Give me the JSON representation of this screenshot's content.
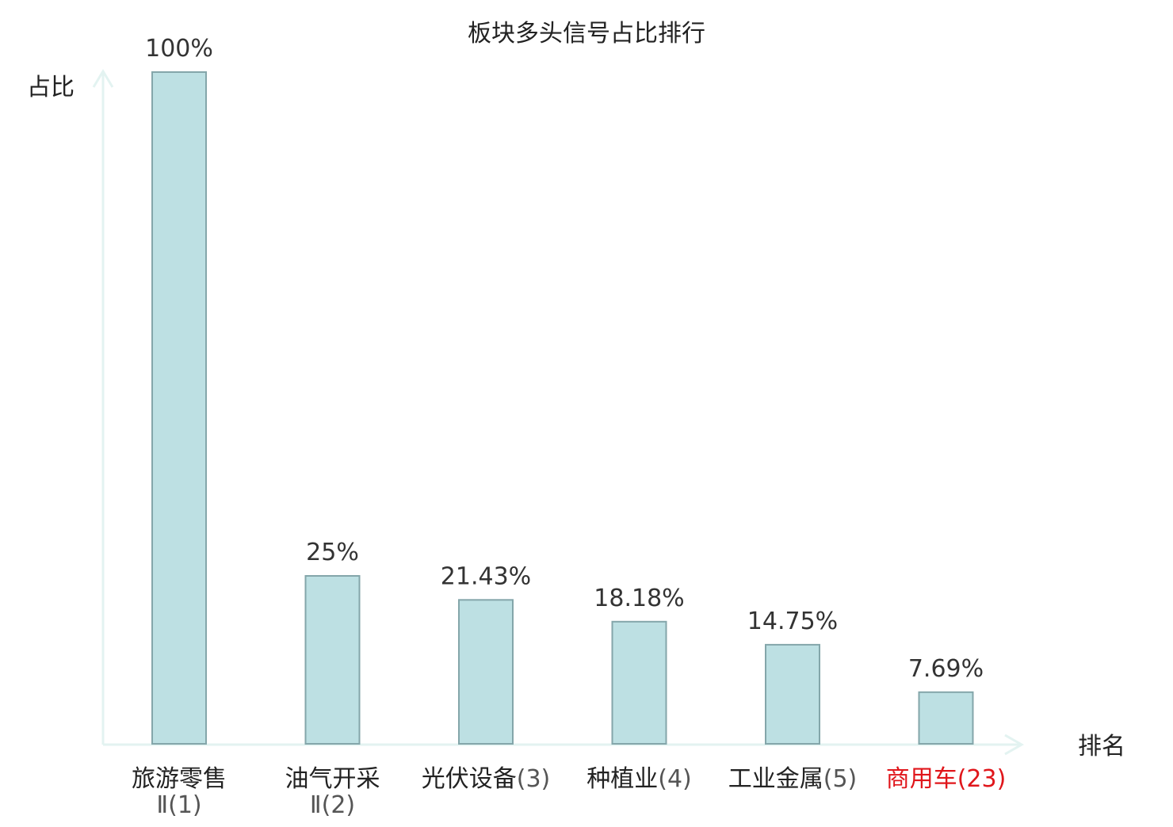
{
  "chart_data": {
    "type": "bar",
    "title": "板块多头信号占比排行",
    "ylabel": "占比",
    "xlabel": "排名",
    "ylim": [
      0,
      100
    ],
    "grid": false,
    "categories": [
      {
        "name": "旅游零售",
        "rank_text": "Ⅱ(1)",
        "highlight": false
      },
      {
        "name": "油气开采",
        "rank_text": "Ⅱ(2)",
        "highlight": false
      },
      {
        "name": "光伏设备",
        "rank_text": "(3)",
        "highlight": false
      },
      {
        "name": "种植业",
        "rank_text": "(4)",
        "highlight": false
      },
      {
        "name": "工业金属",
        "rank_text": "(5)",
        "highlight": false
      },
      {
        "name": "商用车",
        "rank_text": "(23)",
        "highlight": true
      }
    ],
    "values": [
      100,
      25,
      21.43,
      18.18,
      14.75,
      7.69
    ],
    "value_labels": [
      "100%",
      "25%",
      "21.43%",
      "18.18%",
      "14.75%",
      "7.69%"
    ]
  },
  "colors": {
    "bar_fill": "#bde0e3",
    "bar_stroke": "#84a6aa",
    "axis": "#e3f3f1",
    "text": "#222222",
    "rank_text": "#555555",
    "highlight": "#e0161b"
  }
}
